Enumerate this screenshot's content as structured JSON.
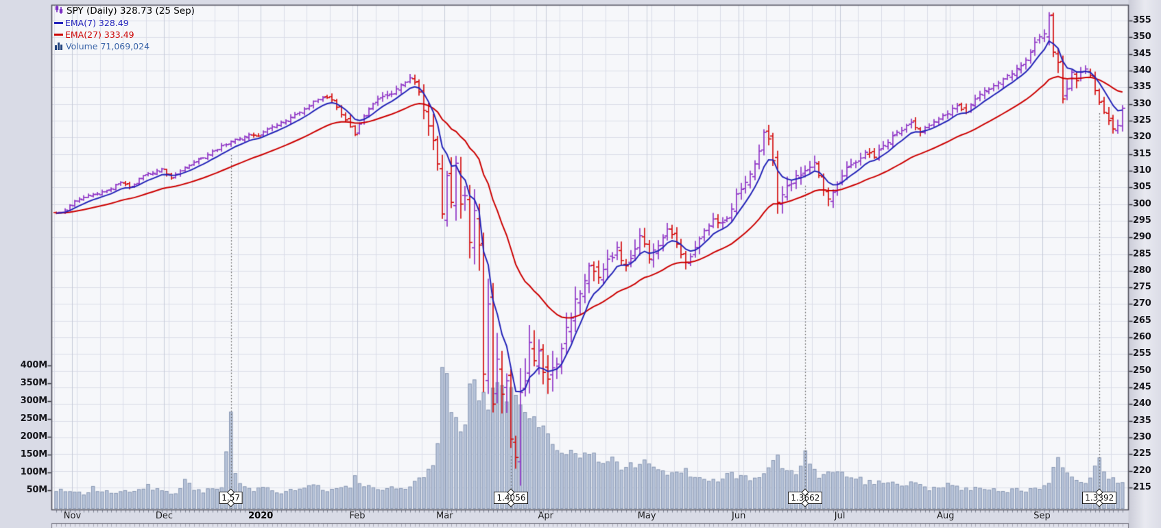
{
  "legend": {
    "symbol_line": "SPY (Daily) 328.73 (25 Sep)",
    "ema7_label": "EMA(7) 328.49",
    "ema27_label": "EMA(27) 333.49",
    "volume_label": "Volume 71,069,024"
  },
  "colors": {
    "up_bar": "#8f35c6",
    "down_bar": "#d40d0d",
    "ema7_line": "#2323b8",
    "ema27_line": "#cc0000",
    "volume_fill": "#b6c2d8",
    "volume_stroke": "#8796b1",
    "grid": "#dadde8",
    "grid_month": "#c6cbd9",
    "plot_bg": "#f6f7fa",
    "outer_bg": "#d9dbe6",
    "border": "#4e4e5a",
    "dotted_marker": "#666666",
    "volume_text": "#3a64a8"
  },
  "chart_data": {
    "type": "ohlc",
    "symbol": "SPY",
    "timeframe": "Daily",
    "last_close": 328.73,
    "last_date": "25 Sep",
    "ema7_value": 328.49,
    "ema27_value": 333.49,
    "last_volume": "71,069,024",
    "total_days": 233,
    "price_axis": {
      "min": 215,
      "max": 355,
      "step": 5,
      "ticks": [
        215,
        220,
        225,
        230,
        235,
        240,
        245,
        250,
        255,
        260,
        265,
        270,
        275,
        280,
        285,
        290,
        295,
        300,
        305,
        310,
        315,
        320,
        325,
        330,
        335,
        340,
        345,
        350,
        355
      ]
    },
    "volume_axis": {
      "ticks": [
        {
          "label": "50M",
          "value": 50
        },
        {
          "label": "100M",
          "value": 100
        },
        {
          "label": "150M",
          "value": 150
        },
        {
          "label": "200M",
          "value": 200
        },
        {
          "label": "250M",
          "value": 250
        },
        {
          "label": "300M",
          "value": 300
        },
        {
          "label": "350M",
          "value": 350
        },
        {
          "label": "400M",
          "value": 400
        }
      ]
    },
    "months": [
      {
        "label": "Nov",
        "day": 4,
        "bold": false
      },
      {
        "label": "Dec",
        "day": 24,
        "bold": false
      },
      {
        "label": "2020",
        "day": 45,
        "bold": true
      },
      {
        "label": "Feb",
        "day": 66,
        "bold": false
      },
      {
        "label": "Mar",
        "day": 85,
        "bold": false
      },
      {
        "label": "Apr",
        "day": 107,
        "bold": false
      },
      {
        "label": "May",
        "day": 129,
        "bold": false
      },
      {
        "label": "Jun",
        "day": 149,
        "bold": false
      },
      {
        "label": "Jul",
        "day": 171,
        "bold": false
      },
      {
        "label": "Aug",
        "day": 194,
        "bold": false
      },
      {
        "label": "Sep",
        "day": 215,
        "bold": false
      }
    ],
    "dividends": [
      {
        "label": "1.57",
        "day": 38
      },
      {
        "label": "1.4056",
        "day": 99
      },
      {
        "label": "1.3662",
        "day": 163
      },
      {
        "label": "1.3392",
        "day": 227
      }
    ],
    "close_keyframes": [
      [
        0,
        297.3
      ],
      [
        2,
        298.2
      ],
      [
        4,
        300.9
      ],
      [
        6,
        302.0
      ],
      [
        9,
        303.0
      ],
      [
        12,
        304.5
      ],
      [
        14,
        306.5
      ],
      [
        16,
        305.0
      ],
      [
        19,
        308.5
      ],
      [
        23,
        310.5
      ],
      [
        25,
        307.8
      ],
      [
        28,
        311.0
      ],
      [
        31,
        313.5
      ],
      [
        33,
        314.8
      ],
      [
        36,
        317.5
      ],
      [
        38,
        318.8
      ],
      [
        40,
        319.5
      ],
      [
        42,
        320.8
      ],
      [
        44,
        320.4
      ],
      [
        46,
        322.5
      ],
      [
        49,
        324.5
      ],
      [
        52,
        326.8
      ],
      [
        54,
        328.5
      ],
      [
        56,
        330.8
      ],
      [
        58,
        331.9
      ],
      [
        60,
        331.2
      ],
      [
        61,
        329.0
      ],
      [
        63,
        325.2
      ],
      [
        65,
        320.8
      ],
      [
        66,
        324.0
      ],
      [
        68,
        328.5
      ],
      [
        70,
        331.5
      ],
      [
        72,
        332.5
      ],
      [
        74,
        334.5
      ],
      [
        76,
        336.5
      ],
      [
        77,
        337.8
      ],
      [
        78,
        336.5
      ],
      [
        79,
        333.6
      ],
      [
        81,
        323.4
      ],
      [
        83,
        312.0
      ],
      [
        84,
        297.0
      ],
      [
        85,
        308.5
      ],
      [
        86,
        300.5
      ],
      [
        87,
        312.2
      ],
      [
        88,
        300.0
      ],
      [
        89,
        302.5
      ],
      [
        90,
        288.5
      ],
      [
        91,
        298.0
      ],
      [
        92,
        287.7
      ],
      [
        93,
        249.0
      ],
      [
        94,
        270.0
      ],
      [
        95,
        240.0
      ],
      [
        96,
        253.5
      ],
      [
        97,
        243.0
      ],
      [
        98,
        247.0
      ],
      [
        99,
        229.5
      ],
      [
        100,
        224.0
      ],
      [
        101,
        243.5
      ],
      [
        102,
        247.0
      ],
      [
        103,
        258.5
      ],
      [
        104,
        253.0
      ],
      [
        105,
        256.0
      ],
      [
        106,
        249.5
      ],
      [
        107,
        247.5
      ],
      [
        109,
        252.0
      ],
      [
        111,
        263.0
      ],
      [
        113,
        271.5
      ],
      [
        115,
        277.0
      ],
      [
        116,
        281.5
      ],
      [
        118,
        278.0
      ],
      [
        120,
        283.5
      ],
      [
        122,
        287.0
      ],
      [
        124,
        281.5
      ],
      [
        126,
        286.5
      ],
      [
        127,
        290.5
      ],
      [
        128,
        288.0
      ],
      [
        129,
        283.5
      ],
      [
        131,
        287.5
      ],
      [
        133,
        292.5
      ],
      [
        135,
        288.0
      ],
      [
        137,
        282.5
      ],
      [
        139,
        287.0
      ],
      [
        141,
        292.0
      ],
      [
        143,
        295.5
      ],
      [
        145,
        294.5
      ],
      [
        147,
        298.5
      ],
      [
        148,
        303.0
      ],
      [
        150,
        306.5
      ],
      [
        152,
        312.0
      ],
      [
        154,
        321.5
      ],
      [
        155,
        319.5
      ],
      [
        156,
        313.0
      ],
      [
        157,
        300.5
      ],
      [
        159,
        305.5
      ],
      [
        161,
        308.5
      ],
      [
        163,
        310.0
      ],
      [
        165,
        312.5
      ],
      [
        166,
        308.5
      ],
      [
        168,
        301.5
      ],
      [
        170,
        306.0
      ],
      [
        172,
        311.0
      ],
      [
        174,
        312.5
      ],
      [
        176,
        315.5
      ],
      [
        178,
        314.0
      ],
      [
        180,
        317.5
      ],
      [
        182,
        320.5
      ],
      [
        184,
        322.0
      ],
      [
        186,
        324.5
      ],
      [
        188,
        321.5
      ],
      [
        190,
        323.5
      ],
      [
        192,
        325.5
      ],
      [
        194,
        327.0
      ],
      [
        196,
        329.5
      ],
      [
        198,
        327.5
      ],
      [
        200,
        331.5
      ],
      [
        202,
        334.0
      ],
      [
        204,
        335.5
      ],
      [
        206,
        337.5
      ],
      [
        208,
        339.0
      ],
      [
        210,
        341.5
      ],
      [
        212,
        345.5
      ],
      [
        213,
        348.5
      ],
      [
        215,
        351.0
      ],
      [
        216,
        356.5
      ],
      [
        217,
        345.5
      ],
      [
        218,
        342.5
      ],
      [
        219,
        331.5
      ],
      [
        220,
        334.5
      ],
      [
        221,
        339.5
      ],
      [
        222,
        337.0
      ],
      [
        223,
        339.5
      ],
      [
        224,
        340.5
      ],
      [
        225,
        338.5
      ],
      [
        226,
        334.0
      ],
      [
        227,
        330.5
      ],
      [
        228,
        327.5
      ],
      [
        229,
        325.0
      ],
      [
        230,
        322.5
      ],
      [
        231,
        323.5
      ],
      [
        232,
        328.73
      ]
    ],
    "volatility_keyframes": [
      [
        0,
        1.1
      ],
      [
        40,
        1.3
      ],
      [
        60,
        1.6
      ],
      [
        77,
        2.2
      ],
      [
        80,
        4.5
      ],
      [
        83,
        7
      ],
      [
        86,
        9
      ],
      [
        90,
        11
      ],
      [
        93,
        13
      ],
      [
        97,
        12.5
      ],
      [
        100,
        12
      ],
      [
        103,
        10
      ],
      [
        106,
        9
      ],
      [
        110,
        7.5
      ],
      [
        114,
        6
      ],
      [
        118,
        5.5
      ],
      [
        124,
        4.8
      ],
      [
        129,
        4.2
      ],
      [
        135,
        3.6
      ],
      [
        141,
        3.2
      ],
      [
        147,
        3.0
      ],
      [
        152,
        3.2
      ],
      [
        154,
        3.8
      ],
      [
        157,
        5.5
      ],
      [
        160,
        4.2
      ],
      [
        164,
        3.6
      ],
      [
        168,
        3.6
      ],
      [
        172,
        3.0
      ],
      [
        177,
        2.6
      ],
      [
        183,
        2.2
      ],
      [
        190,
        2.0
      ],
      [
        198,
        2.1
      ],
      [
        205,
        2.2
      ],
      [
        211,
        2.4
      ],
      [
        214,
        2.8
      ],
      [
        216,
        4.2
      ],
      [
        218,
        5.2
      ],
      [
        220,
        4.2
      ],
      [
        223,
        3.2
      ],
      [
        227,
        3.2
      ],
      [
        232,
        2.8
      ]
    ],
    "volume_keyframes_millions": [
      [
        0,
        46
      ],
      [
        2,
        52
      ],
      [
        4,
        44
      ],
      [
        6,
        40
      ],
      [
        8,
        56
      ],
      [
        10,
        47
      ],
      [
        12,
        42
      ],
      [
        14,
        52
      ],
      [
        16,
        44
      ],
      [
        18,
        48
      ],
      [
        20,
        62
      ],
      [
        22,
        50
      ],
      [
        23,
        56
      ],
      [
        24,
        48
      ],
      [
        26,
        42
      ],
      [
        28,
        74
      ],
      [
        30,
        56
      ],
      [
        32,
        48
      ],
      [
        34,
        60
      ],
      [
        36,
        52
      ],
      [
        38,
        255
      ],
      [
        39,
        88
      ],
      [
        41,
        56
      ],
      [
        43,
        48
      ],
      [
        44,
        60
      ],
      [
        45,
        56
      ],
      [
        47,
        50
      ],
      [
        49,
        44
      ],
      [
        51,
        54
      ],
      [
        53,
        50
      ],
      [
        55,
        58
      ],
      [
        56,
        66
      ],
      [
        58,
        54
      ],
      [
        60,
        50
      ],
      [
        62,
        56
      ],
      [
        64,
        64
      ],
      [
        65,
        86
      ],
      [
        66,
        70
      ],
      [
        67,
        58
      ],
      [
        68,
        62
      ],
      [
        70,
        52
      ],
      [
        72,
        56
      ],
      [
        74,
        60
      ],
      [
        76,
        54
      ],
      [
        77,
        58
      ],
      [
        78,
        68
      ],
      [
        79,
        82
      ],
      [
        80,
        96
      ],
      [
        81,
        112
      ],
      [
        82,
        128
      ],
      [
        83,
        165
      ],
      [
        84,
        385
      ],
      [
        85,
        402
      ],
      [
        86,
        252
      ],
      [
        87,
        232
      ],
      [
        88,
        212
      ],
      [
        89,
        262
      ],
      [
        90,
        315
      ],
      [
        91,
        330
      ],
      [
        92,
        272
      ],
      [
        93,
        322
      ],
      [
        94,
        300
      ],
      [
        95,
        352
      ],
      [
        96,
        330
      ],
      [
        97,
        348
      ],
      [
        98,
        302
      ],
      [
        99,
        336
      ],
      [
        100,
        320
      ],
      [
        101,
        300
      ],
      [
        102,
        282
      ],
      [
        103,
        252
      ],
      [
        104,
        232
      ],
      [
        105,
        242
      ],
      [
        106,
        222
      ],
      [
        107,
        202
      ],
      [
        109,
        178
      ],
      [
        111,
        165
      ],
      [
        113,
        152
      ],
      [
        115,
        158
      ],
      [
        117,
        142
      ],
      [
        119,
        132
      ],
      [
        121,
        142
      ],
      [
        123,
        122
      ],
      [
        125,
        116
      ],
      [
        127,
        126
      ],
      [
        129,
        120
      ],
      [
        131,
        106
      ],
      [
        133,
        96
      ],
      [
        135,
        112
      ],
      [
        137,
        102
      ],
      [
        139,
        92
      ],
      [
        141,
        86
      ],
      [
        143,
        82
      ],
      [
        145,
        86
      ],
      [
        147,
        96
      ],
      [
        149,
        88
      ],
      [
        151,
        82
      ],
      [
        153,
        92
      ],
      [
        155,
        112
      ],
      [
        157,
        136
      ],
      [
        159,
        102
      ],
      [
        161,
        92
      ],
      [
        163,
        165
      ],
      [
        164,
        120
      ],
      [
        166,
        92
      ],
      [
        168,
        106
      ],
      [
        170,
        96
      ],
      [
        172,
        88
      ],
      [
        174,
        82
      ],
      [
        176,
        74
      ],
      [
        178,
        70
      ],
      [
        180,
        76
      ],
      [
        182,
        66
      ],
      [
        184,
        64
      ],
      [
        186,
        72
      ],
      [
        188,
        62
      ],
      [
        190,
        56
      ],
      [
        192,
        60
      ],
      [
        194,
        64
      ],
      [
        196,
        56
      ],
      [
        198,
        52
      ],
      [
        200,
        60
      ],
      [
        202,
        54
      ],
      [
        204,
        50
      ],
      [
        206,
        46
      ],
      [
        208,
        52
      ],
      [
        210,
        54
      ],
      [
        212,
        50
      ],
      [
        214,
        56
      ],
      [
        215,
        62
      ],
      [
        216,
        74
      ],
      [
        217,
        118
      ],
      [
        218,
        152
      ],
      [
        219,
        122
      ],
      [
        220,
        96
      ],
      [
        221,
        86
      ],
      [
        222,
        88
      ],
      [
        224,
        76
      ],
      [
        225,
        82
      ],
      [
        227,
        136
      ],
      [
        228,
        92
      ],
      [
        230,
        82
      ],
      [
        231,
        74
      ],
      [
        232,
        71
      ]
    ]
  }
}
